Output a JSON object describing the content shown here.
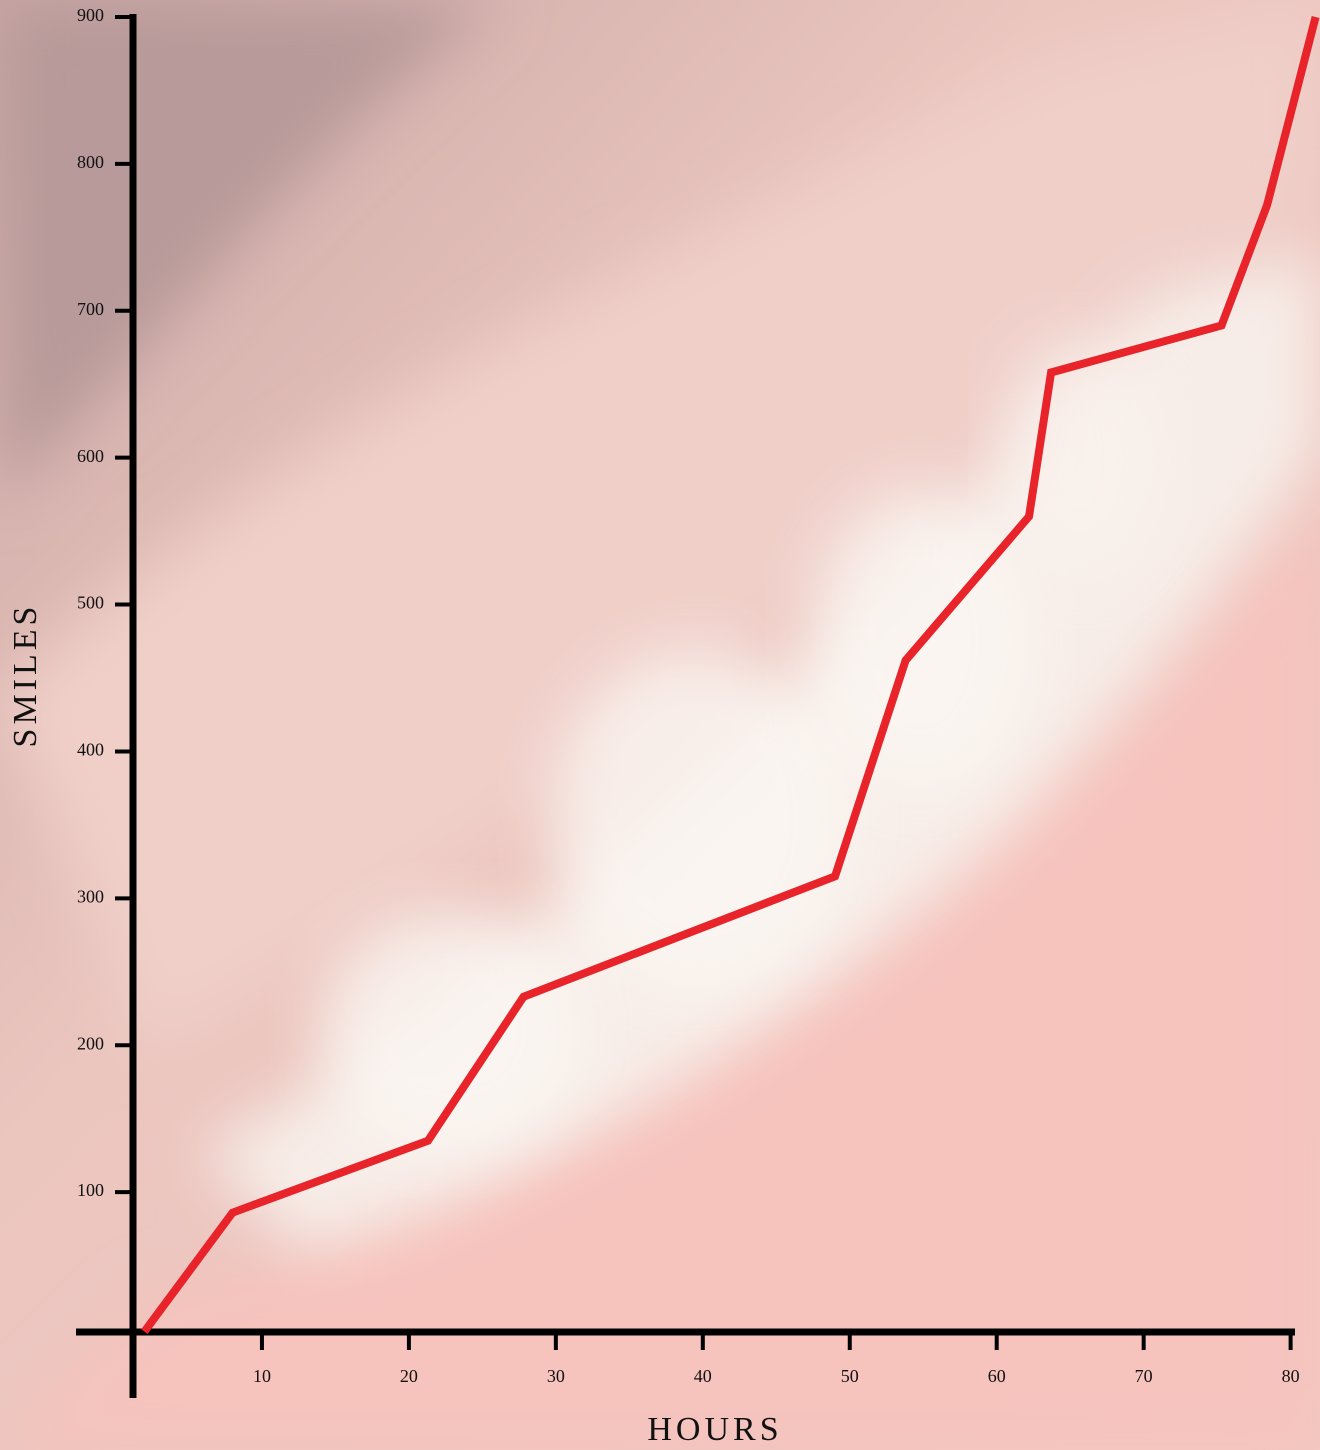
{
  "chart_data": {
    "type": "line",
    "x_label": "HOURS",
    "y_label": "SMILES",
    "series": [
      {
        "color": "#e8232a",
        "x": [
          2,
          8,
          21.3,
          27.8,
          49,
          53.8,
          62.2,
          63.7,
          75.3,
          78.4,
          81.7
        ],
        "values": [
          5,
          86,
          135,
          233,
          315,
          462,
          560,
          658,
          690,
          772,
          900
        ]
      }
    ],
    "xlim": [
      0,
      82
    ],
    "ylim": [
      0,
      900
    ],
    "xticks": [
      10,
      20,
      30,
      40,
      50,
      60,
      70,
      80
    ],
    "yticks": [
      100,
      200,
      300,
      400,
      500,
      600,
      700,
      800,
      900
    ]
  }
}
